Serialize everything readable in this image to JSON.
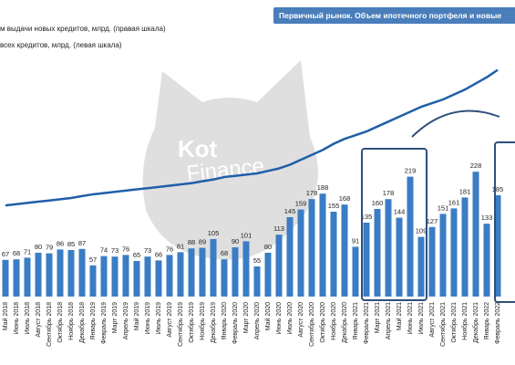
{
  "chart_data": {
    "type": "bar_line",
    "title": "Первичный рынок. Объем ипотечного портфеля и новые",
    "watermark": [
      "Kot",
      "Finance"
    ],
    "legend": [
      "м выдачи новых кредитов, млрд. (правая шкала)",
      "всех кредитов, млрд. (левая шкала)"
    ],
    "categories": [
      "Май 2018",
      "Июнь 2018",
      "Июль 2018",
      "Август 2018",
      "Сентябрь 2018",
      "Октябрь 2018",
      "Ноябрь 2018",
      "Декабрь 2018",
      "Январь 2019",
      "Февраль 2019",
      "Март 2019",
      "Апрель 2019",
      "Май 2019",
      "Июнь 2019",
      "Июль 2019",
      "Август 2019",
      "Сентябрь 2019",
      "Октябрь 2019",
      "Ноябрь 2019",
      "Декабрь 2019",
      "Январь 2020",
      "Февраль 2020",
      "Март 2020",
      "Апрель 2020",
      "Май 2020",
      "Июнь 2020",
      "Июль 2020",
      "Август 2020",
      "Сентябрь 2020",
      "Октябрь 2020",
      "Ноябрь 2020",
      "Декабрь 2020",
      "Январь 2021",
      "Февраль 2021",
      "Март 2021",
      "Апрель 2021",
      "Май 2021",
      "Июнь 2021",
      "Июль 2021",
      "Август 2021",
      "Сентябрь 2021",
      "Октябрь 2021",
      "Ноябрь 2021",
      "Декабрь 2021",
      "Январь 2022",
      "Февраль 2022"
    ],
    "series": [
      {
        "name": "bars",
        "color": "#3a7dc4",
        "values": [
          67,
          68,
          71,
          80,
          79,
          86,
          85,
          87,
          57,
          74,
          73,
          76,
          65,
          73,
          66,
          76,
          81,
          88,
          89,
          105,
          68,
          90,
          101,
          55,
          80,
          113,
          145,
          159,
          178,
          188,
          155,
          168,
          91,
          135,
          160,
          178,
          144,
          219,
          109,
          127,
          151,
          161,
          181,
          228,
          133,
          185
        ]
      },
      {
        "name": "line",
        "color": "#1f5fa8",
        "axis": "y2",
        "values": [
          37,
          37.5,
          38,
          38.5,
          39,
          39.5,
          40,
          40.8,
          41.5,
          42,
          42.5,
          43,
          43.5,
          44,
          44.5,
          45,
          45.5,
          46,
          46.8,
          47.5,
          48.5,
          49,
          49.5,
          50,
          51,
          52,
          53.5,
          55.5,
          57.5,
          59.5,
          62,
          64,
          65.5,
          67,
          69,
          71,
          73,
          75,
          77,
          78.5,
          80,
          82,
          84,
          86.5,
          89,
          92
        ]
      }
    ],
    "ylim": [
      0,
      450
    ],
    "y2lim": [
      0,
      100
    ]
  }
}
